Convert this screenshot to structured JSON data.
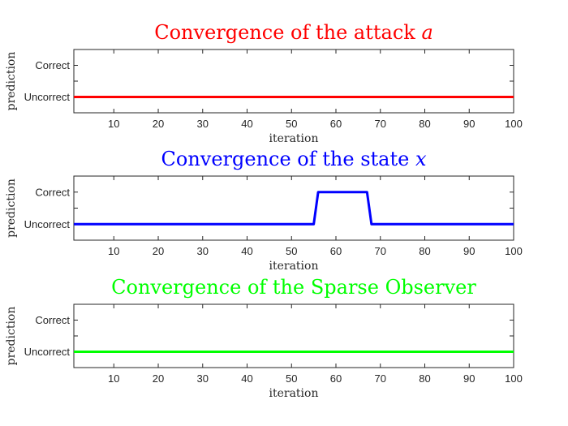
{
  "chart_data": [
    {
      "type": "line",
      "title": "Convergence of the attack ",
      "title_variable": "a",
      "title_color": "#ff0000",
      "xlabel": "iteration",
      "ylabel": "prediction",
      "xlim": [
        1,
        100
      ],
      "xticks": [
        10,
        20,
        30,
        40,
        50,
        60,
        70,
        80,
        90,
        100
      ],
      "yticks": [
        "Uncorrect",
        "Correct"
      ],
      "grid": false,
      "series": [
        {
          "color": "#ff0000",
          "x": [
            1,
            100
          ],
          "y": [
            0,
            0
          ]
        }
      ]
    },
    {
      "type": "line",
      "title": "Convergence of the state ",
      "title_variable": "x",
      "title_color": "#0000ff",
      "xlabel": "iteration",
      "ylabel": "prediction",
      "xlim": [
        1,
        100
      ],
      "xticks": [
        10,
        20,
        30,
        40,
        50,
        60,
        70,
        80,
        90,
        100
      ],
      "yticks": [
        "Uncorrect",
        "Correct"
      ],
      "grid": false,
      "series": [
        {
          "color": "#0000ff",
          "x": [
            1,
            55,
            56,
            67,
            68,
            100
          ],
          "y": [
            0,
            0,
            1,
            1,
            0,
            0
          ]
        }
      ]
    },
    {
      "type": "line",
      "title": "Convergence of the Sparse Observer",
      "title_variable": "",
      "title_color": "#00ff00",
      "xlabel": "iteration",
      "ylabel": "prediction",
      "xlim": [
        1,
        100
      ],
      "xticks": [
        10,
        20,
        30,
        40,
        50,
        60,
        70,
        80,
        90,
        100
      ],
      "yticks": [
        "Uncorrect",
        "Correct"
      ],
      "grid": false,
      "series": [
        {
          "color": "#00ff00",
          "x": [
            1,
            100
          ],
          "y": [
            0,
            0
          ]
        }
      ]
    }
  ]
}
